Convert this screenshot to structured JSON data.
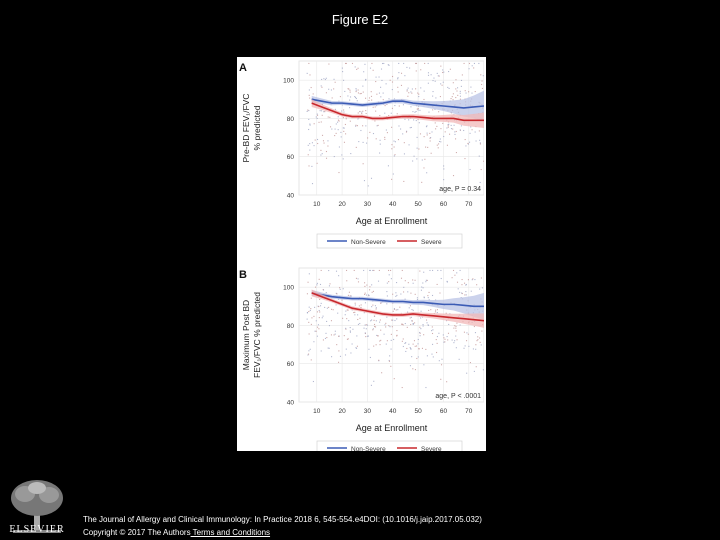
{
  "page": {
    "title": "Figure E2"
  },
  "citation": "The Journal of Allergy and Clinical Immunology: In Practice 2018 6, 545-554.e4DOI: (10.1016/j.jaip.2017.05.032)",
  "copyright": {
    "text": "Copyright © 2017 The Authors",
    "link": " Terms and Conditions"
  },
  "publisher": {
    "name": "ELSEVIER",
    "logo_icon": "elsevier-tree-icon"
  },
  "colors": {
    "non_severe": "#3b5bb5",
    "severe": "#c8282d",
    "non_severe_band": "#b9c3e6",
    "severe_band": "#f2b8b8",
    "points": "#b07b7b"
  },
  "chart_data": [
    {
      "type": "line",
      "panel_letter": "A",
      "ylabel_lines": [
        "Pre-BD FEV₁/FVC",
        "% predicted"
      ],
      "xlabel": "Age at Enrollment",
      "xlim": [
        3,
        76
      ],
      "ylim": [
        40,
        110
      ],
      "xticks": [
        10,
        20,
        30,
        40,
        50,
        60,
        70
      ],
      "yticks": [
        40,
        60,
        80,
        100
      ],
      "annotation": "age, P = 0.34",
      "legend": {
        "position": "bottom",
        "entries": [
          "Non-Severe",
          "Severe"
        ]
      },
      "grid": true,
      "x": [
        8,
        12,
        16,
        20,
        24,
        28,
        32,
        36,
        40,
        44,
        48,
        52,
        56,
        60,
        64,
        68,
        72,
        76
      ],
      "series": [
        {
          "name": "Non-Severe",
          "values": [
            90,
            89,
            88,
            88,
            87.5,
            87,
            87.5,
            88,
            89,
            89,
            88,
            87.5,
            87,
            86.5,
            86,
            85.5,
            86,
            86.5
          ],
          "band": [
            1.8,
            1.4,
            1.1,
            1.0,
            1.0,
            1.0,
            1.0,
            1.0,
            1.1,
            1.2,
            1.3,
            1.6,
            2.0,
            2.6,
            3.4,
            4.5,
            6.0,
            8.0
          ]
        },
        {
          "name": "Severe",
          "values": [
            88,
            86,
            84,
            82,
            81,
            81,
            80,
            80,
            80.5,
            81,
            81,
            80.5,
            80,
            80,
            80,
            79,
            79,
            79
          ],
          "band": [
            2.0,
            1.5,
            1.2,
            1.0,
            1.0,
            1.0,
            1.0,
            1.0,
            1.0,
            1.1,
            1.2,
            1.3,
            1.5,
            1.8,
            2.2,
            2.8,
            3.4,
            4.0
          ]
        }
      ]
    },
    {
      "type": "line",
      "panel_letter": "B",
      "ylabel_lines": [
        "Maximum Post BD",
        "FEV₁/FVC % predicted"
      ],
      "xlabel": "Age at Enrollment",
      "xlim": [
        3,
        76
      ],
      "ylim": [
        40,
        110
      ],
      "xticks": [
        10,
        20,
        30,
        40,
        50,
        60,
        70
      ],
      "yticks": [
        40,
        60,
        80,
        100
      ],
      "annotation": "age, P < .0001",
      "legend": {
        "position": "bottom",
        "entries": [
          "Non-Severe",
          "Severe"
        ]
      },
      "grid": true,
      "x": [
        8,
        12,
        16,
        20,
        24,
        28,
        32,
        36,
        40,
        44,
        48,
        52,
        56,
        60,
        64,
        68,
        72,
        76
      ],
      "series": [
        {
          "name": "Non-Severe",
          "values": [
            97,
            96,
            95,
            94.5,
            94,
            94,
            93.5,
            93,
            92.5,
            92.5,
            92,
            92,
            91.5,
            91,
            91,
            90.5,
            90,
            90
          ],
          "band": [
            1.6,
            1.2,
            1.0,
            1.0,
            1.0,
            1.0,
            1.0,
            1.0,
            1.0,
            1.1,
            1.2,
            1.4,
            1.8,
            2.4,
            3.2,
            4.2,
            5.5,
            7.0
          ]
        },
        {
          "name": "Severe",
          "values": [
            97,
            95,
            93,
            91,
            89,
            88,
            87,
            86,
            85.5,
            85.5,
            86,
            85.5,
            85,
            84.5,
            84,
            83.5,
            83,
            82.5
          ],
          "band": [
            1.8,
            1.3,
            1.0,
            1.0,
            1.0,
            1.0,
            1.0,
            1.0,
            1.0,
            1.0,
            1.1,
            1.2,
            1.4,
            1.7,
            2.1,
            2.6,
            3.2,
            3.8
          ]
        }
      ]
    }
  ]
}
